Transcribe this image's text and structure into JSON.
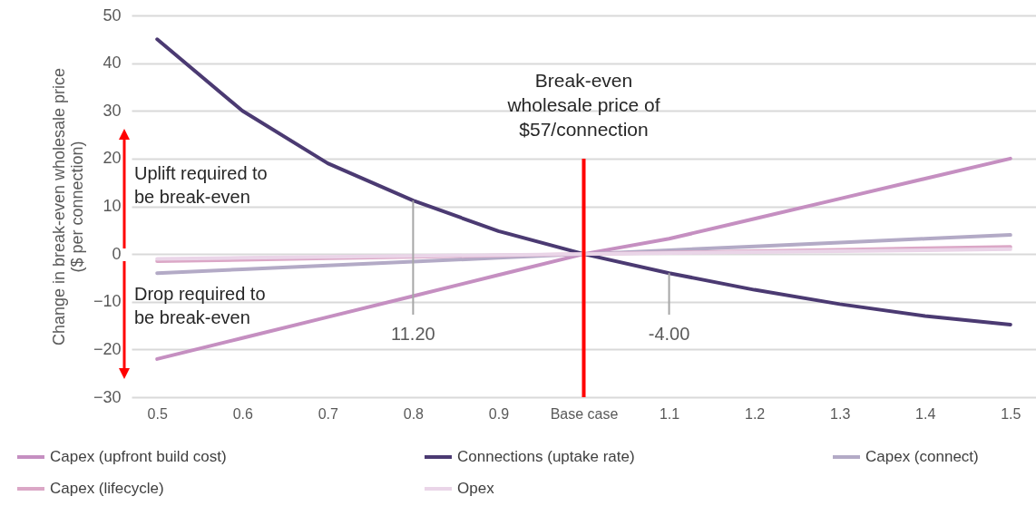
{
  "chart_data": {
    "type": "line",
    "ylabel": "Change in break-even wholesale price ($ per connection)",
    "categories": [
      "0.5",
      "0.6",
      "0.7",
      "0.8",
      "0.9",
      "Base case",
      "1.1",
      "1.2",
      "1.3",
      "1.4",
      "1.5"
    ],
    "series": [
      {
        "name": "Capex (upfront build cost)",
        "color": "#c58fc1",
        "values": [
          -22,
          -17.6,
          -13.2,
          -8.8,
          -4.4,
          0,
          3.2,
          7.4,
          11.6,
          15.8,
          20
        ]
      },
      {
        "name": "Connections (uptake rate)",
        "color": "#4b3a72",
        "values": [
          45,
          30,
          19,
          11.2,
          4.8,
          0,
          -4,
          -7.5,
          -10.5,
          -13,
          -14.8
        ]
      },
      {
        "name": "Capex (connect)",
        "color": "#b3aac6",
        "values": [
          -4,
          -3.2,
          -2.4,
          -1.6,
          -0.8,
          0,
          0.8,
          1.6,
          2.4,
          3.2,
          4
        ]
      },
      {
        "name": "Capex (lifecycle)",
        "color": "#dba7c6",
        "values": [
          -1.5,
          -1.2,
          -0.9,
          -0.6,
          -0.3,
          0,
          0.3,
          0.6,
          0.9,
          1.2,
          1.5
        ]
      },
      {
        "name": "Opex",
        "color": "#ead5e8",
        "values": [
          -1,
          -0.8,
          -0.6,
          -0.4,
          -0.2,
          0,
          0.2,
          0.4,
          0.6,
          0.8,
          1
        ]
      }
    ],
    "ylim": [
      -30,
      50
    ],
    "yticks": [
      -30,
      -20,
      -10,
      0,
      10,
      20,
      30,
      40,
      50
    ],
    "grid": "y",
    "legend": "bottom",
    "ref_lines": [
      {
        "axis": "x",
        "value": "Base case",
        "label": "Break-even wholesale price of $57/connection",
        "color": "#ff0000"
      }
    ],
    "annotations": [
      "Uplift required to be break-even",
      "Drop required to be break-even",
      {
        "text": "11.20",
        "x": "0.8",
        "y": 11.2
      },
      {
        "text": "-4.00",
        "x": "1.1",
        "y": -4
      }
    ]
  }
}
